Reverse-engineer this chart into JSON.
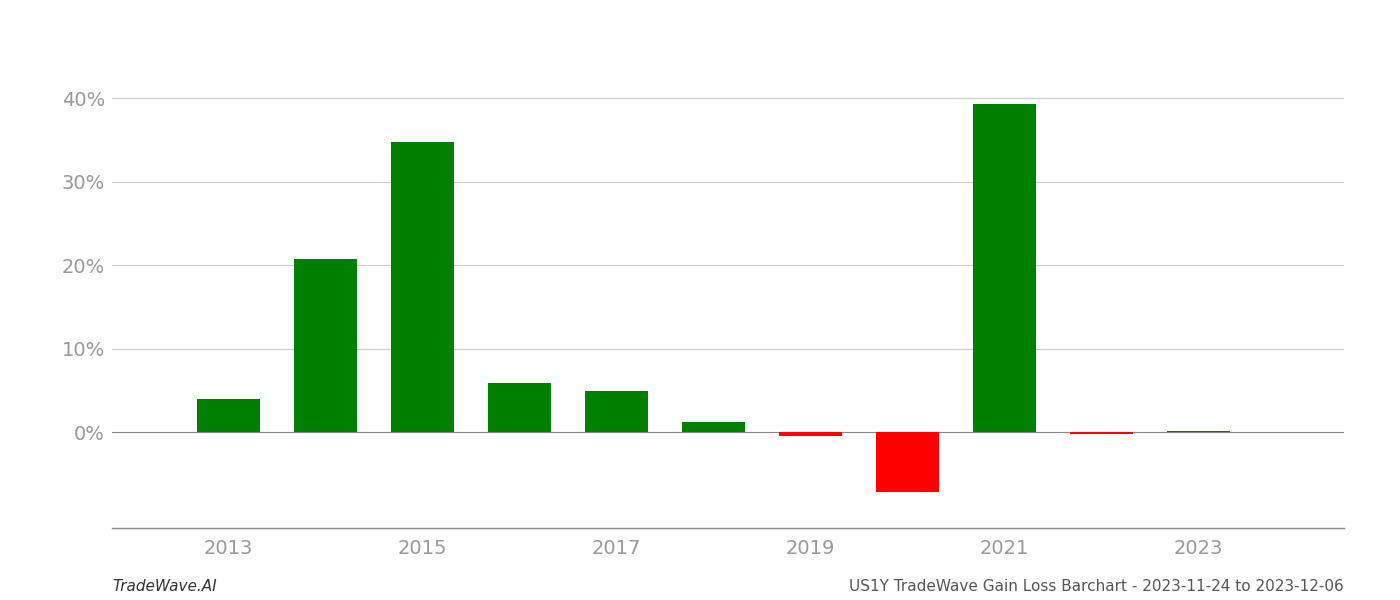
{
  "years": [
    2013,
    2014,
    2015,
    2016,
    2017,
    2018,
    2019,
    2020,
    2021,
    2022,
    2023
  ],
  "values": [
    0.04,
    0.207,
    0.347,
    0.059,
    0.049,
    0.012,
    -0.005,
    -0.072,
    0.393,
    -0.002,
    0.001
  ],
  "green_color": "#008000",
  "red_color": "#ff0000",
  "background_color": "#ffffff",
  "grid_color": "#cccccc",
  "axis_label_color": "#999999",
  "footer_left": "TradeWave.AI",
  "footer_right": "US1Y TradeWave Gain Loss Barchart - 2023-11-24 to 2023-12-06",
  "ylim_min": -0.115,
  "ylim_max": 0.46,
  "bar_width": 0.65,
  "yticks": [
    0.0,
    0.1,
    0.2,
    0.3,
    0.4
  ],
  "ytick_labels": [
    "0%",
    "10%",
    "20%",
    "30%",
    "40%"
  ],
  "footer_fontsize": 11,
  "tick_fontsize": 14,
  "xticks": [
    2013,
    2015,
    2017,
    2019,
    2021,
    2023
  ],
  "xlim_min": 2011.8,
  "xlim_max": 2024.5
}
